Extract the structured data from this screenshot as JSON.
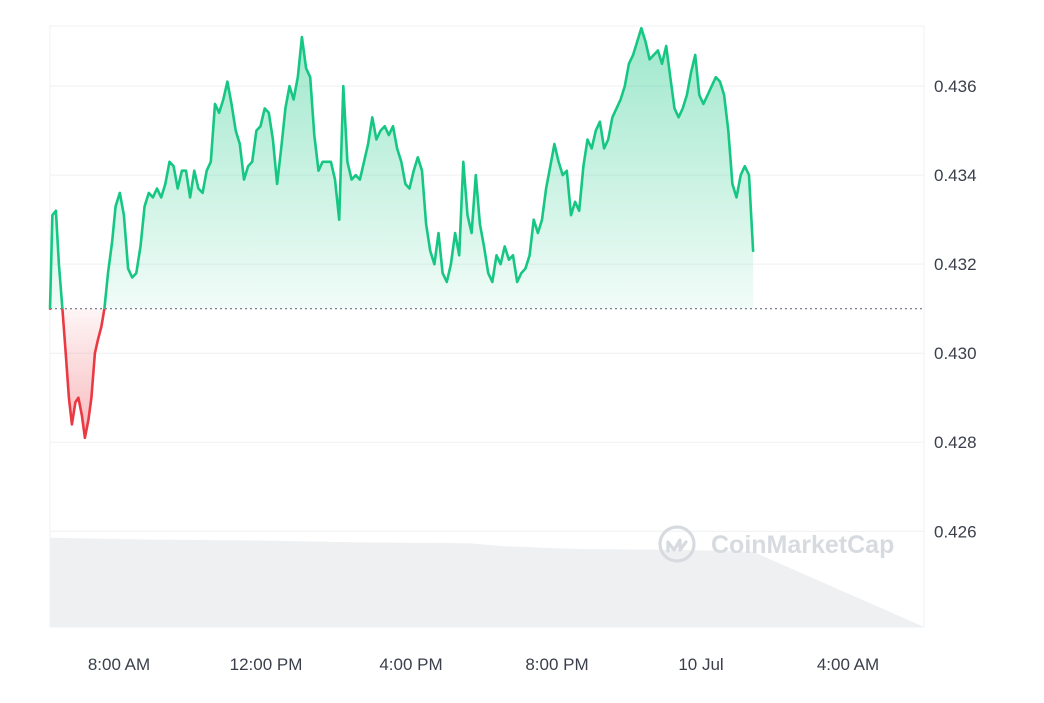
{
  "watermark": {
    "text": "CoinMarketCap",
    "icon": "coinmarketcap-logo-icon"
  },
  "colors": {
    "up_line": "#16c784",
    "down_line": "#ea3943",
    "grid": "#eef0f3",
    "baseline": "#6b7280",
    "volume": "#eef0f2",
    "watermark": "#d7dbe0",
    "label": "#3a3f4b"
  },
  "chart_data": {
    "type": "line",
    "title": "",
    "xlabel": "",
    "ylabel": "",
    "x_start": "9 Jul 06:12",
    "x_end": "10 Jul 06:50",
    "x_ticks": [
      "8:00 AM",
      "12:00 PM",
      "4:00 PM",
      "8:00 PM",
      "10 Jul",
      "4:00 AM"
    ],
    "y_ticks": [
      "0.436",
      "0.434",
      "0.432",
      "0.430",
      "0.428",
      "0.426"
    ],
    "ylim": [
      0.42385,
      0.43735
    ],
    "baseline_price": 0.431,
    "grid": true,
    "y_axis_position": "right",
    "series": [
      {
        "type": "line",
        "points": [
          [
            "9 Jul 06:12",
            0.431
          ],
          [
            "9 Jul 06:16",
            0.4331
          ],
          [
            "9 Jul 06:22",
            0.4332
          ],
          [
            "9 Jul 06:27",
            0.432
          ],
          [
            "9 Jul 06:33",
            0.431
          ],
          [
            "9 Jul 06:38",
            0.4301
          ],
          [
            "9 Jul 06:44",
            0.429
          ],
          [
            "9 Jul 06:49",
            0.4284
          ],
          [
            "9 Jul 06:55",
            0.4289
          ],
          [
            "9 Jul 07:00",
            0.429
          ],
          [
            "9 Jul 07:06",
            0.4286
          ],
          [
            "9 Jul 07:11",
            0.4281
          ],
          [
            "9 Jul 07:17",
            0.4285
          ],
          [
            "9 Jul 07:22",
            0.429
          ],
          [
            "9 Jul 07:28",
            0.43
          ],
          [
            "9 Jul 07:33",
            0.4303
          ],
          [
            "9 Jul 07:39",
            0.4306
          ],
          [
            "9 Jul 07:44",
            0.431
          ],
          [
            "9 Jul 07:50",
            0.4318
          ],
          [
            "9 Jul 07:57",
            0.4325
          ],
          [
            "9 Jul 08:03",
            0.4333
          ],
          [
            "9 Jul 08:10",
            0.4336
          ],
          [
            "9 Jul 08:17",
            0.4331
          ],
          [
            "9 Jul 08:24",
            0.4319
          ],
          [
            "9 Jul 08:31",
            0.4317
          ],
          [
            "9 Jul 08:38",
            0.4318
          ],
          [
            "9 Jul 08:45",
            0.4324
          ],
          [
            "9 Jul 08:52",
            0.4333
          ],
          [
            "9 Jul 08:59",
            0.4336
          ],
          [
            "9 Jul 09:06",
            0.4335
          ],
          [
            "9 Jul 09:13",
            0.4337
          ],
          [
            "9 Jul 09:20",
            0.4335
          ],
          [
            "9 Jul 09:27",
            0.4338
          ],
          [
            "9 Jul 09:34",
            0.4343
          ],
          [
            "9 Jul 09:41",
            0.4342
          ],
          [
            "9 Jul 09:48",
            0.4337
          ],
          [
            "9 Jul 09:55",
            0.4341
          ],
          [
            "9 Jul 10:02",
            0.4341
          ],
          [
            "9 Jul 10:09",
            0.4335
          ],
          [
            "9 Jul 10:16",
            0.4341
          ],
          [
            "9 Jul 10:23",
            0.4337
          ],
          [
            "9 Jul 10:30",
            0.4336
          ],
          [
            "9 Jul 10:37",
            0.4341
          ],
          [
            "9 Jul 10:44",
            0.4343
          ],
          [
            "9 Jul 10:51",
            0.4356
          ],
          [
            "9 Jul 10:58",
            0.4354
          ],
          [
            "9 Jul 11:05",
            0.4357
          ],
          [
            "9 Jul 11:12",
            0.4361
          ],
          [
            "9 Jul 11:19",
            0.4356
          ],
          [
            "9 Jul 11:26",
            0.435
          ],
          [
            "9 Jul 11:33",
            0.4347
          ],
          [
            "9 Jul 11:40",
            0.4339
          ],
          [
            "9 Jul 11:47",
            0.4342
          ],
          [
            "9 Jul 11:54",
            0.4343
          ],
          [
            "9 Jul 12:01",
            0.435
          ],
          [
            "9 Jul 12:08",
            0.4351
          ],
          [
            "9 Jul 12:15",
            0.4355
          ],
          [
            "9 Jul 12:22",
            0.4354
          ],
          [
            "9 Jul 12:29",
            0.4348
          ],
          [
            "9 Jul 12:36",
            0.4338
          ],
          [
            "9 Jul 12:43",
            0.4346
          ],
          [
            "9 Jul 12:50",
            0.4355
          ],
          [
            "9 Jul 12:57",
            0.436
          ],
          [
            "9 Jul 13:04",
            0.4357
          ],
          [
            "9 Jul 13:11",
            0.4362
          ],
          [
            "9 Jul 13:18",
            0.4371
          ],
          [
            "9 Jul 13:25",
            0.4364
          ],
          [
            "9 Jul 13:32",
            0.4362
          ],
          [
            "9 Jul 13:39",
            0.4349
          ],
          [
            "9 Jul 13:46",
            0.4341
          ],
          [
            "9 Jul 13:53",
            0.4343
          ],
          [
            "9 Jul 14:00",
            0.4343
          ],
          [
            "9 Jul 14:07",
            0.4343
          ],
          [
            "9 Jul 14:14",
            0.4339
          ],
          [
            "9 Jul 14:21",
            0.433
          ],
          [
            "9 Jul 14:28",
            0.436
          ],
          [
            "9 Jul 14:35",
            0.4343
          ],
          [
            "9 Jul 14:42",
            0.4339
          ],
          [
            "9 Jul 14:49",
            0.434
          ],
          [
            "9 Jul 14:56",
            0.4339
          ],
          [
            "9 Jul 15:03",
            0.4343
          ],
          [
            "9 Jul 15:10",
            0.4347
          ],
          [
            "9 Jul 15:17",
            0.4353
          ],
          [
            "9 Jul 15:24",
            0.4348
          ],
          [
            "9 Jul 15:31",
            0.435
          ],
          [
            "9 Jul 15:38",
            0.4351
          ],
          [
            "9 Jul 15:45",
            0.4349
          ],
          [
            "9 Jul 15:52",
            0.4351
          ],
          [
            "9 Jul 15:59",
            0.4346
          ],
          [
            "9 Jul 16:06",
            0.4343
          ],
          [
            "9 Jul 16:13",
            0.4338
          ],
          [
            "9 Jul 16:20",
            0.4337
          ],
          [
            "9 Jul 16:27",
            0.4341
          ],
          [
            "9 Jul 16:34",
            0.4344
          ],
          [
            "9 Jul 16:41",
            0.4341
          ],
          [
            "9 Jul 16:48",
            0.4329
          ],
          [
            "9 Jul 16:55",
            0.4323
          ],
          [
            "9 Jul 17:02",
            0.432
          ],
          [
            "9 Jul 17:09",
            0.4327
          ],
          [
            "9 Jul 17:16",
            0.4318
          ],
          [
            "9 Jul 17:23",
            0.4316
          ],
          [
            "9 Jul 17:30",
            0.432
          ],
          [
            "9 Jul 17:37",
            0.4327
          ],
          [
            "9 Jul 17:44",
            0.4322
          ],
          [
            "9 Jul 17:51",
            0.4343
          ],
          [
            "9 Jul 17:58",
            0.4331
          ],
          [
            "9 Jul 18:05",
            0.4327
          ],
          [
            "9 Jul 18:12",
            0.434
          ],
          [
            "9 Jul 18:19",
            0.4329
          ],
          [
            "9 Jul 18:26",
            0.4324
          ],
          [
            "9 Jul 18:33",
            0.4318
          ],
          [
            "9 Jul 18:40",
            0.4316
          ],
          [
            "9 Jul 18:47",
            0.4322
          ],
          [
            "9 Jul 18:54",
            0.432
          ],
          [
            "9 Jul 19:01",
            0.4324
          ],
          [
            "9 Jul 19:08",
            0.4321
          ],
          [
            "9 Jul 19:15",
            0.4322
          ],
          [
            "9 Jul 19:22",
            0.4316
          ],
          [
            "9 Jul 19:29",
            0.4318
          ],
          [
            "9 Jul 19:36",
            0.4319
          ],
          [
            "9 Jul 19:43",
            0.4322
          ],
          [
            "9 Jul 19:50",
            0.433
          ],
          [
            "9 Jul 19:57",
            0.4327
          ],
          [
            "9 Jul 20:04",
            0.433
          ],
          [
            "9 Jul 20:11",
            0.4337
          ],
          [
            "9 Jul 20:18",
            0.4342
          ],
          [
            "9 Jul 20:25",
            0.4347
          ],
          [
            "9 Jul 20:32",
            0.4343
          ],
          [
            "9 Jul 20:39",
            0.434
          ],
          [
            "9 Jul 20:46",
            0.4341
          ],
          [
            "9 Jul 20:53",
            0.4331
          ],
          [
            "9 Jul 21:00",
            0.4334
          ],
          [
            "9 Jul 21:07",
            0.4332
          ],
          [
            "9 Jul 21:14",
            0.4342
          ],
          [
            "9 Jul 21:21",
            0.4348
          ],
          [
            "9 Jul 21:28",
            0.4346
          ],
          [
            "9 Jul 21:35",
            0.435
          ],
          [
            "9 Jul 21:42",
            0.4352
          ],
          [
            "9 Jul 21:49",
            0.4346
          ],
          [
            "9 Jul 21:56",
            0.4348
          ],
          [
            "9 Jul 22:03",
            0.4353
          ],
          [
            "9 Jul 22:10",
            0.4355
          ],
          [
            "9 Jul 22:17",
            0.4357
          ],
          [
            "9 Jul 22:24",
            0.436
          ],
          [
            "9 Jul 22:31",
            0.4365
          ],
          [
            "9 Jul 22:38",
            0.4367
          ],
          [
            "9 Jul 22:45",
            0.437
          ],
          [
            "9 Jul 22:52",
            0.4373
          ],
          [
            "9 Jul 22:59",
            0.437
          ],
          [
            "9 Jul 23:06",
            0.4366
          ],
          [
            "9 Jul 23:13",
            0.4367
          ],
          [
            "9 Jul 23:20",
            0.4368
          ],
          [
            "9 Jul 23:27",
            0.4365
          ],
          [
            "9 Jul 23:34",
            0.4369
          ],
          [
            "9 Jul 23:41",
            0.4362
          ],
          [
            "9 Jul 23:48",
            0.4355
          ],
          [
            "9 Jul 23:55",
            0.4353
          ],
          [
            "10 Jul 00:02",
            0.4355
          ],
          [
            "10 Jul 00:09",
            0.4358
          ],
          [
            "10 Jul 00:16",
            0.4363
          ],
          [
            "10 Jul 00:23",
            0.4367
          ],
          [
            "10 Jul 00:30",
            0.4358
          ],
          [
            "10 Jul 00:37",
            0.4356
          ],
          [
            "10 Jul 00:44",
            0.4358
          ],
          [
            "10 Jul 00:51",
            0.436
          ],
          [
            "10 Jul 00:58",
            0.4362
          ],
          [
            "10 Jul 01:05",
            0.4361
          ],
          [
            "10 Jul 01:12",
            0.4358
          ],
          [
            "10 Jul 01:19",
            0.435
          ],
          [
            "10 Jul 01:26",
            0.4338
          ],
          [
            "10 Jul 01:33",
            0.4335
          ],
          [
            "10 Jul 01:40",
            0.434
          ],
          [
            "10 Jul 01:47",
            0.4342
          ],
          [
            "10 Jul 01:54",
            0.434
          ],
          [
            "10 Jul 02:01",
            0.4323
          ]
        ]
      }
    ],
    "volume": {
      "type": "area",
      "note_unit": "relative",
      "points": [
        [
          "9 Jul 06:12",
          0.95
        ],
        [
          "9 Jul 09:00",
          0.93
        ],
        [
          "9 Jul 12:00",
          0.92
        ],
        [
          "9 Jul 15:00",
          0.9
        ],
        [
          "9 Jul 18:00",
          0.89
        ],
        [
          "9 Jul 19:00",
          0.86
        ],
        [
          "9 Jul 21:00",
          0.83
        ],
        [
          "10 Jul 00:00",
          0.82
        ],
        [
          "10 Jul 02:01",
          0.8
        ]
      ]
    }
  }
}
